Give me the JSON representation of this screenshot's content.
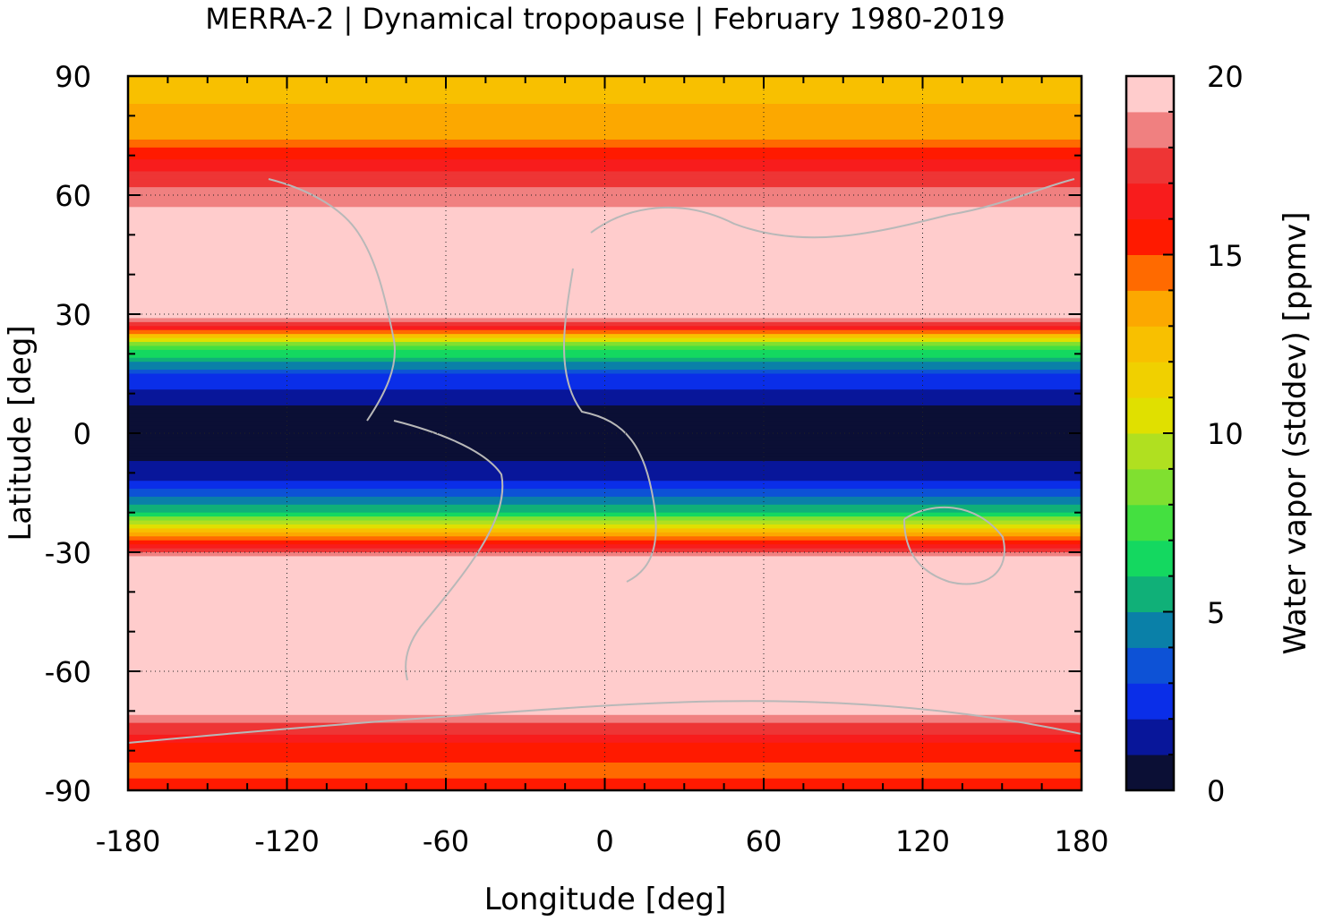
{
  "chart_data": {
    "type": "heatmap",
    "title": "MERRA-2 | Dynamical tropopause | February 1980-2019",
    "xlabel": "Longitude [deg]",
    "ylabel": "Latitude [deg]",
    "colorbar_label": "Water vapor (stddev) [ppmv]",
    "xlim": [
      -180,
      180
    ],
    "ylim": [
      -90,
      90
    ],
    "xticks": [
      "-180",
      "-120",
      "-60",
      "0",
      "60",
      "120",
      "180"
    ],
    "yticks": [
      "90",
      "60",
      "30",
      "0",
      "-30",
      "-60",
      "-90"
    ],
    "colorbar_ticks": [
      "20",
      "15",
      "10",
      "5",
      "0"
    ],
    "colorbar_range": [
      0,
      20
    ],
    "grid": true,
    "colorbar_levels": [
      {
        "from": 0,
        "to": 1,
        "color": "#0b0f35"
      },
      {
        "from": 1,
        "to": 2,
        "color": "#08169a"
      },
      {
        "from": 2,
        "to": 3,
        "color": "#0a2ee8"
      },
      {
        "from": 3,
        "to": 4,
        "color": "#0d52d6"
      },
      {
        "from": 4,
        "to": 5,
        "color": "#0a80a8"
      },
      {
        "from": 5,
        "to": 6,
        "color": "#10b078"
      },
      {
        "from": 6,
        "to": 7,
        "color": "#14d860"
      },
      {
        "from": 7,
        "to": 8,
        "color": "#44e040"
      },
      {
        "from": 8,
        "to": 9,
        "color": "#80e030"
      },
      {
        "from": 9,
        "to": 10,
        "color": "#b0e020"
      },
      {
        "from": 10,
        "to": 11,
        "color": "#e0e000"
      },
      {
        "from": 11,
        "to": 12,
        "color": "#f0d000"
      },
      {
        "from": 12,
        "to": 13,
        "color": "#f8c000"
      },
      {
        "from": 13,
        "to": 14,
        "color": "#fca800"
      },
      {
        "from": 14,
        "to": 15,
        "color": "#ff6a00"
      },
      {
        "from": 15,
        "to": 16,
        "color": "#ff1a00"
      },
      {
        "from": 16,
        "to": 17,
        "color": "#f81c1c"
      },
      {
        "from": 17,
        "to": 18,
        "color": "#ee3535"
      },
      {
        "from": 18,
        "to": 19,
        "color": "#f08080"
      },
      {
        "from": 19,
        "to": 20,
        "color": "#ffcccc"
      }
    ],
    "field_description_profile": [
      {
        "lat": 90,
        "value": 12.5
      },
      {
        "lat": 75,
        "value": 13.5
      },
      {
        "lat": 68,
        "value": 16.5
      },
      {
        "lat": 55,
        "value": 19.5
      },
      {
        "lat": 30,
        "value": 19.5
      },
      {
        "lat": 26,
        "value": 15.5
      },
      {
        "lat": 22,
        "value": 8
      },
      {
        "lat": 15,
        "value": 3
      },
      {
        "lat": 5,
        "value": 0.5
      },
      {
        "lat": -5,
        "value": 0.5
      },
      {
        "lat": -12,
        "value": 2
      },
      {
        "lat": -20,
        "value": 6
      },
      {
        "lat": -27,
        "value": 15.5
      },
      {
        "lat": -32,
        "value": 19.5
      },
      {
        "lat": -70,
        "value": 19.5
      },
      {
        "lat": -78,
        "value": 16
      },
      {
        "lat": -85,
        "value": 14.5
      },
      {
        "lat": -90,
        "value": 16
      }
    ]
  }
}
